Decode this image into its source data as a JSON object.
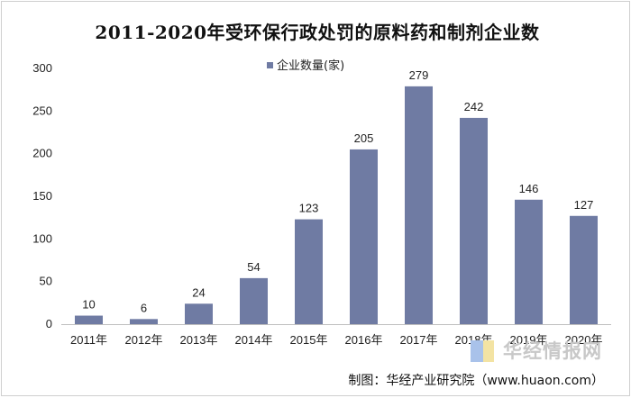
{
  "chart_data": {
    "type": "bar",
    "title": "2011-2020年受环保行政处罚的原料药和制剂企业数",
    "categories": [
      "2011年",
      "2012年",
      "2013年",
      "2014年",
      "2015年",
      "2016年",
      "2017年",
      "2018年",
      "2019年",
      "2020年"
    ],
    "series": [
      {
        "name": "企业数量(家)",
        "values": [
          10,
          6,
          24,
          54,
          123,
          205,
          279,
          242,
          146,
          127
        ],
        "color": "#6f7ba3"
      }
    ],
    "ylim": [
      0,
      300
    ],
    "yticks": [
      0,
      50,
      100,
      150,
      200,
      250,
      300
    ],
    "xlabel": "",
    "ylabel": "",
    "grid": false,
    "legend_position": "top-center"
  },
  "source": "制图：华经产业研究院（www.huaon.com）",
  "watermark": "华经情报网"
}
